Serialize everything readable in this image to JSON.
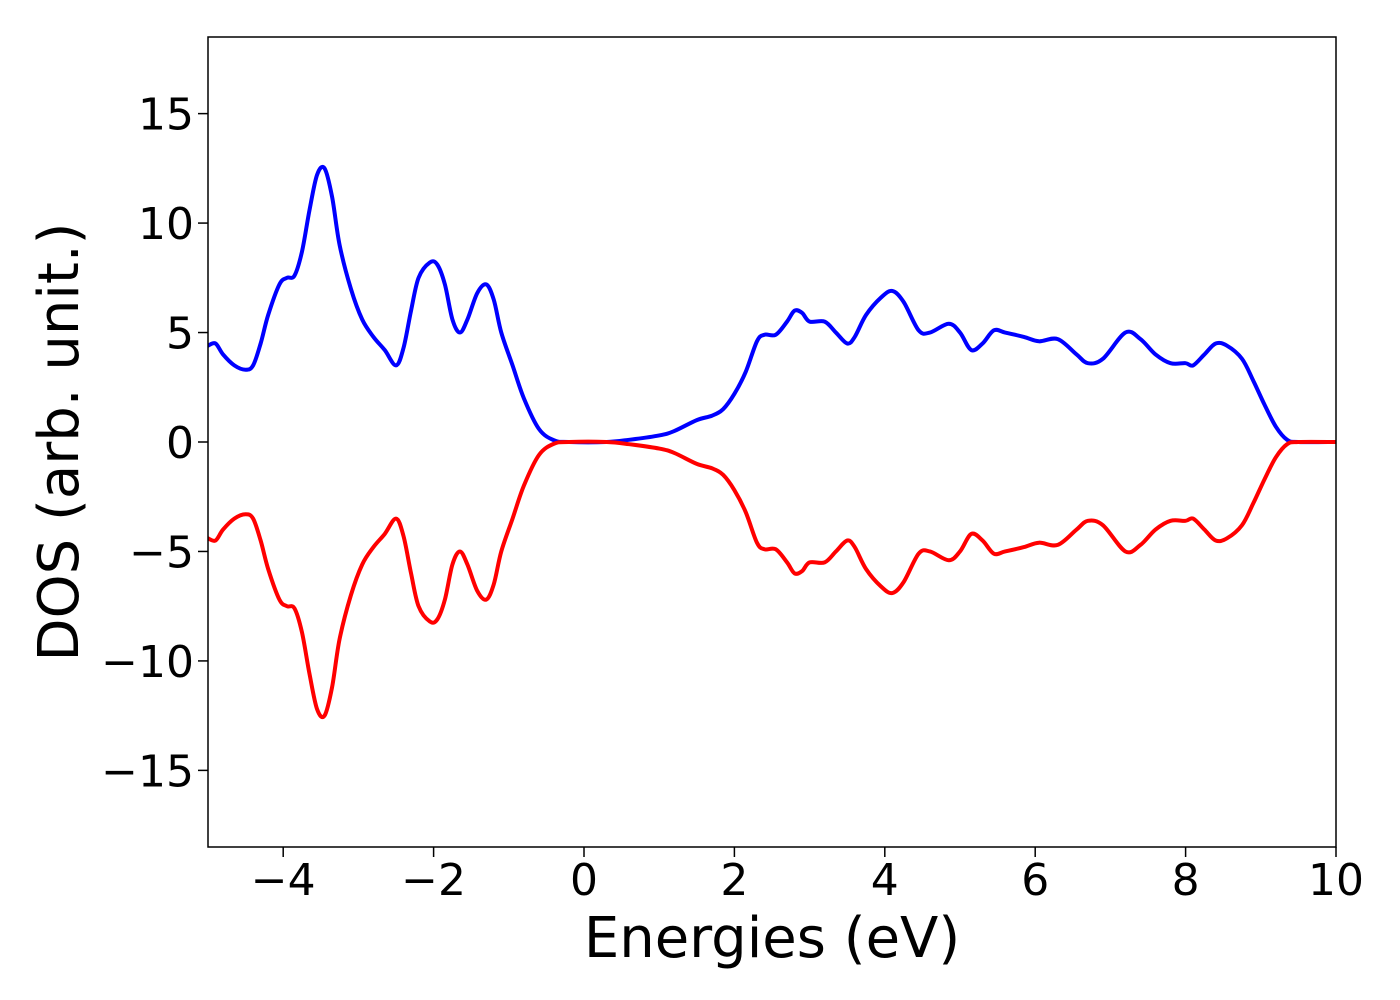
{
  "chart_data": {
    "type": "line",
    "title": "",
    "xlabel": "Energies (eV)",
    "ylabel": "DOS (arb. unit.)",
    "xlim": [
      -5,
      10
    ],
    "ylim": [
      -18.5,
      18.5
    ],
    "xticks": [
      -4,
      -2,
      0,
      2,
      4,
      6,
      8,
      10
    ],
    "yticks": [
      -15,
      -10,
      -5,
      0,
      5,
      10,
      15
    ],
    "xtick_labels": [
      "−4",
      "−2",
      "0",
      "2",
      "4",
      "6",
      "8",
      "10"
    ],
    "ytick_labels": [
      "−15",
      "−10",
      "−5",
      "0",
      "5",
      "10",
      "15"
    ],
    "grid": false,
    "legend": "none",
    "series": [
      {
        "color": "#0000ff",
        "points": [
          [
            -5.0,
            4.4
          ],
          [
            -4.9,
            4.5
          ],
          [
            -4.8,
            4.0
          ],
          [
            -4.65,
            3.5
          ],
          [
            -4.5,
            3.3
          ],
          [
            -4.4,
            3.5
          ],
          [
            -4.3,
            4.5
          ],
          [
            -4.2,
            5.8
          ],
          [
            -4.05,
            7.2
          ],
          [
            -3.95,
            7.5
          ],
          [
            -3.85,
            7.6
          ],
          [
            -3.75,
            8.7
          ],
          [
            -3.65,
            10.6
          ],
          [
            -3.55,
            12.2
          ],
          [
            -3.45,
            12.5
          ],
          [
            -3.35,
            11.2
          ],
          [
            -3.25,
            9.0
          ],
          [
            -3.1,
            7.0
          ],
          [
            -2.95,
            5.6
          ],
          [
            -2.8,
            4.8
          ],
          [
            -2.65,
            4.2
          ],
          [
            -2.5,
            3.5
          ],
          [
            -2.4,
            4.3
          ],
          [
            -2.3,
            6.0
          ],
          [
            -2.2,
            7.5
          ],
          [
            -2.05,
            8.2
          ],
          [
            -1.95,
            8.1
          ],
          [
            -1.85,
            7.2
          ],
          [
            -1.75,
            5.6
          ],
          [
            -1.65,
            5.0
          ],
          [
            -1.55,
            5.6
          ],
          [
            -1.42,
            6.8
          ],
          [
            -1.3,
            7.2
          ],
          [
            -1.2,
            6.5
          ],
          [
            -1.1,
            5.0
          ],
          [
            -0.95,
            3.5
          ],
          [
            -0.8,
            2.0
          ],
          [
            -0.6,
            0.6
          ],
          [
            -0.4,
            0.08
          ],
          [
            -0.2,
            0.0
          ],
          [
            0.3,
            0.0
          ],
          [
            0.6,
            0.1
          ],
          [
            1.0,
            0.3
          ],
          [
            1.2,
            0.5
          ],
          [
            1.5,
            1.0
          ],
          [
            1.7,
            1.2
          ],
          [
            1.85,
            1.5
          ],
          [
            2.0,
            2.2
          ],
          [
            2.15,
            3.2
          ],
          [
            2.3,
            4.6
          ],
          [
            2.4,
            4.9
          ],
          [
            2.55,
            4.9
          ],
          [
            2.7,
            5.5
          ],
          [
            2.8,
            6.0
          ],
          [
            2.9,
            5.9
          ],
          [
            3.0,
            5.5
          ],
          [
            3.2,
            5.5
          ],
          [
            3.35,
            5.0
          ],
          [
            3.5,
            4.5
          ],
          [
            3.6,
            4.8
          ],
          [
            3.75,
            5.8
          ],
          [
            3.95,
            6.6
          ],
          [
            4.1,
            6.9
          ],
          [
            4.25,
            6.4
          ],
          [
            4.45,
            5.1
          ],
          [
            4.6,
            5.0
          ],
          [
            4.85,
            5.4
          ],
          [
            5.0,
            5.0
          ],
          [
            5.15,
            4.2
          ],
          [
            5.3,
            4.5
          ],
          [
            5.45,
            5.1
          ],
          [
            5.6,
            5.0
          ],
          [
            5.85,
            4.8
          ],
          [
            6.05,
            4.6
          ],
          [
            6.3,
            4.7
          ],
          [
            6.55,
            4.0
          ],
          [
            6.7,
            3.6
          ],
          [
            6.9,
            3.8
          ],
          [
            7.2,
            5.0
          ],
          [
            7.4,
            4.7
          ],
          [
            7.6,
            4.0
          ],
          [
            7.8,
            3.6
          ],
          [
            8.0,
            3.6
          ],
          [
            8.1,
            3.5
          ],
          [
            8.25,
            4.0
          ],
          [
            8.4,
            4.5
          ],
          [
            8.55,
            4.4
          ],
          [
            8.75,
            3.8
          ],
          [
            8.9,
            2.8
          ],
          [
            9.05,
            1.7
          ],
          [
            9.2,
            0.7
          ],
          [
            9.35,
            0.1
          ],
          [
            9.5,
            0.0
          ],
          [
            10.0,
            0.0
          ]
        ]
      },
      {
        "color": "#ff0000",
        "mirror_of_series": 0
      }
    ]
  }
}
